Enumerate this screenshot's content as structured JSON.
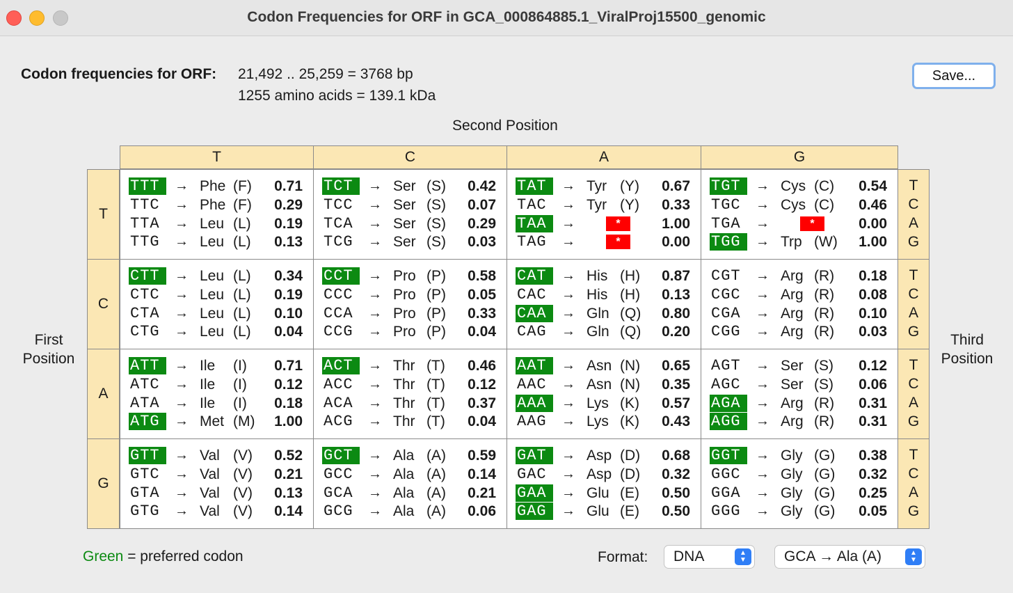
{
  "window": {
    "title": "Codon Frequencies for ORF in GCA_000864885.1_ViralProj15500_genomic"
  },
  "header": {
    "label": "Codon frequencies for ORF:",
    "line1": "21,492 .. 25,259  =  3768 bp",
    "line2": "1255 amino acids  =  139.1 kDa",
    "save_label": "Save..."
  },
  "axes": {
    "second": "Second Position",
    "first": [
      "First",
      "Position"
    ],
    "third": [
      "Third",
      "Position"
    ]
  },
  "bases": [
    "T",
    "C",
    "A",
    "G"
  ],
  "arrow": "→",
  "stop_symbol": "*",
  "rows": [
    [
      [
        [
          "TTT",
          "Phe",
          "(F)",
          "0.71",
          true
        ],
        [
          "TTC",
          "Phe",
          "(F)",
          "0.29",
          false
        ],
        [
          "TTA",
          "Leu",
          "(L)",
          "0.19",
          false
        ],
        [
          "TTG",
          "Leu",
          "(L)",
          "0.13",
          false
        ]
      ],
      [
        [
          "TCT",
          "Ser",
          "(S)",
          "0.42",
          true
        ],
        [
          "TCC",
          "Ser",
          "(S)",
          "0.07",
          false
        ],
        [
          "TCA",
          "Ser",
          "(S)",
          "0.29",
          false
        ],
        [
          "TCG",
          "Ser",
          "(S)",
          "0.03",
          false
        ]
      ],
      [
        [
          "TAT",
          "Tyr",
          "(Y)",
          "0.67",
          true
        ],
        [
          "TAC",
          "Tyr",
          "(Y)",
          "0.33",
          false
        ],
        [
          "TAA",
          "*",
          "",
          "1.00",
          true
        ],
        [
          "TAG",
          "*",
          "",
          "0.00",
          false
        ]
      ],
      [
        [
          "TGT",
          "Cys",
          "(C)",
          "0.54",
          true
        ],
        [
          "TGC",
          "Cys",
          "(C)",
          "0.46",
          false
        ],
        [
          "TGA",
          "*",
          "",
          "0.00",
          false
        ],
        [
          "TGG",
          "Trp",
          "(W)",
          "1.00",
          true
        ]
      ]
    ],
    [
      [
        [
          "CTT",
          "Leu",
          "(L)",
          "0.34",
          true
        ],
        [
          "CTC",
          "Leu",
          "(L)",
          "0.19",
          false
        ],
        [
          "CTA",
          "Leu",
          "(L)",
          "0.10",
          false
        ],
        [
          "CTG",
          "Leu",
          "(L)",
          "0.04",
          false
        ]
      ],
      [
        [
          "CCT",
          "Pro",
          "(P)",
          "0.58",
          true
        ],
        [
          "CCC",
          "Pro",
          "(P)",
          "0.05",
          false
        ],
        [
          "CCA",
          "Pro",
          "(P)",
          "0.33",
          false
        ],
        [
          "CCG",
          "Pro",
          "(P)",
          "0.04",
          false
        ]
      ],
      [
        [
          "CAT",
          "His",
          "(H)",
          "0.87",
          true
        ],
        [
          "CAC",
          "His",
          "(H)",
          "0.13",
          false
        ],
        [
          "CAA",
          "Gln",
          "(Q)",
          "0.80",
          true
        ],
        [
          "CAG",
          "Gln",
          "(Q)",
          "0.20",
          false
        ]
      ],
      [
        [
          "CGT",
          "Arg",
          "(R)",
          "0.18",
          false
        ],
        [
          "CGC",
          "Arg",
          "(R)",
          "0.08",
          false
        ],
        [
          "CGA",
          "Arg",
          "(R)",
          "0.10",
          false
        ],
        [
          "CGG",
          "Arg",
          "(R)",
          "0.03",
          false
        ]
      ]
    ],
    [
      [
        [
          "ATT",
          "Ile",
          "(I)",
          "0.71",
          true
        ],
        [
          "ATC",
          "Ile",
          "(I)",
          "0.12",
          false
        ],
        [
          "ATA",
          "Ile",
          "(I)",
          "0.18",
          false
        ],
        [
          "ATG",
          "Met",
          "(M)",
          "1.00",
          true
        ]
      ],
      [
        [
          "ACT",
          "Thr",
          "(T)",
          "0.46",
          true
        ],
        [
          "ACC",
          "Thr",
          "(T)",
          "0.12",
          false
        ],
        [
          "ACA",
          "Thr",
          "(T)",
          "0.37",
          false
        ],
        [
          "ACG",
          "Thr",
          "(T)",
          "0.04",
          false
        ]
      ],
      [
        [
          "AAT",
          "Asn",
          "(N)",
          "0.65",
          true
        ],
        [
          "AAC",
          "Asn",
          "(N)",
          "0.35",
          false
        ],
        [
          "AAA",
          "Lys",
          "(K)",
          "0.57",
          true
        ],
        [
          "AAG",
          "Lys",
          "(K)",
          "0.43",
          false
        ]
      ],
      [
        [
          "AGT",
          "Ser",
          "(S)",
          "0.12",
          false
        ],
        [
          "AGC",
          "Ser",
          "(S)",
          "0.06",
          false
        ],
        [
          "AGA",
          "Arg",
          "(R)",
          "0.31",
          true
        ],
        [
          "AGG",
          "Arg",
          "(R)",
          "0.31",
          true
        ]
      ]
    ],
    [
      [
        [
          "GTT",
          "Val",
          "(V)",
          "0.52",
          true
        ],
        [
          "GTC",
          "Val",
          "(V)",
          "0.21",
          false
        ],
        [
          "GTA",
          "Val",
          "(V)",
          "0.13",
          false
        ],
        [
          "GTG",
          "Val",
          "(V)",
          "0.14",
          false
        ]
      ],
      [
        [
          "GCT",
          "Ala",
          "(A)",
          "0.59",
          true
        ],
        [
          "GCC",
          "Ala",
          "(A)",
          "0.14",
          false
        ],
        [
          "GCA",
          "Ala",
          "(A)",
          "0.21",
          false
        ],
        [
          "GCG",
          "Ala",
          "(A)",
          "0.06",
          false
        ]
      ],
      [
        [
          "GAT",
          "Asp",
          "(D)",
          "0.68",
          true
        ],
        [
          "GAC",
          "Asp",
          "(D)",
          "0.32",
          false
        ],
        [
          "GAA",
          "Glu",
          "(E)",
          "0.50",
          true
        ],
        [
          "GAG",
          "Glu",
          "(E)",
          "0.50",
          true
        ]
      ],
      [
        [
          "GGT",
          "Gly",
          "(G)",
          "0.38",
          true
        ],
        [
          "GGC",
          "Gly",
          "(G)",
          "0.32",
          false
        ],
        [
          "GGA",
          "Gly",
          "(G)",
          "0.25",
          false
        ],
        [
          "GGG",
          "Gly",
          "(G)",
          "0.05",
          false
        ]
      ]
    ]
  ],
  "footer": {
    "legend_green": "Green",
    "legend_rest": " = preferred codon",
    "format_label": "Format:",
    "format_value": "DNA",
    "codon_value": "GCA → Ala  (A)"
  },
  "colors": {
    "preferred": "#0c8a12",
    "stop": "#ff0000",
    "header_bg": "#fbe7b4",
    "accent": "#2f7ef6"
  }
}
